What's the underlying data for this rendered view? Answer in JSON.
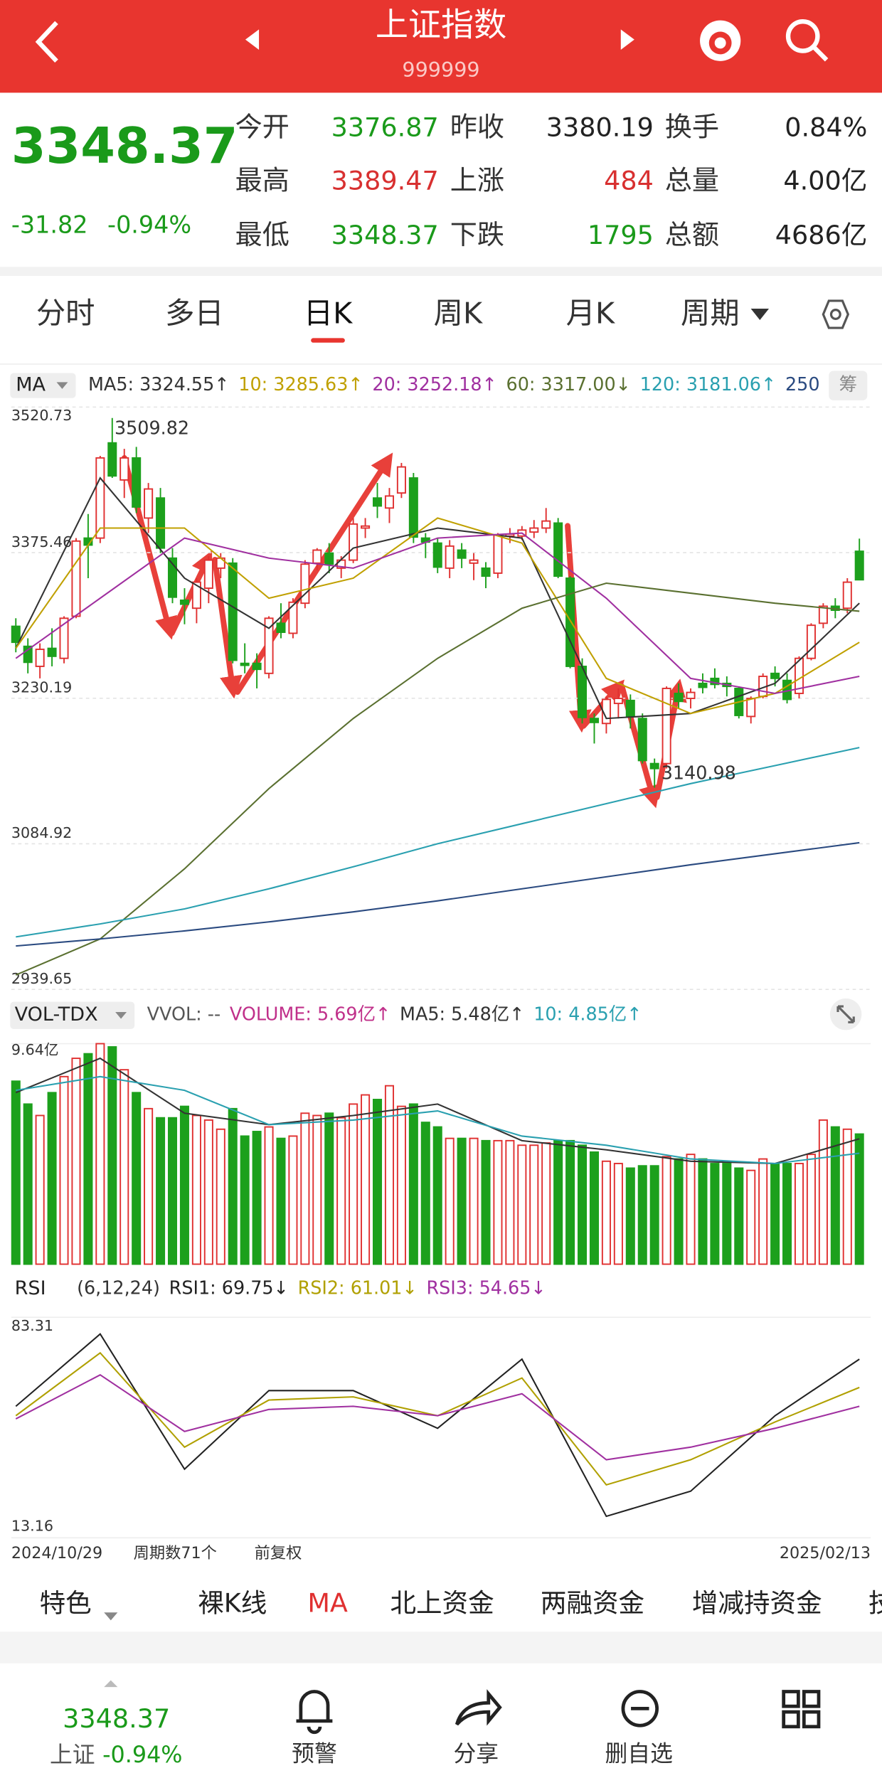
{
  "header": {
    "title": "上证指数",
    "code": "999999"
  },
  "quote": {
    "price": "3348.37",
    "change": "-31.82",
    "pct": "-0.94%",
    "fields": [
      {
        "label": "今开",
        "value": "3376.87",
        "color": "#1a9a1a"
      },
      {
        "label": "昨收",
        "value": "3380.19",
        "color": "#222"
      },
      {
        "label": "换手",
        "value": "0.84%",
        "color": "#222"
      },
      {
        "label": "最高",
        "value": "3389.47",
        "color": "#d83030"
      },
      {
        "label": "上涨",
        "value": "484",
        "color": "#d83030"
      },
      {
        "label": "总量",
        "value": "4.00亿",
        "color": "#222"
      },
      {
        "label": "最低",
        "value": "3348.37",
        "color": "#1a9a1a"
      },
      {
        "label": "下跌",
        "value": "1795",
        "color": "#1a9a1a"
      },
      {
        "label": "总额",
        "value": "4686亿",
        "color": "#222"
      }
    ]
  },
  "tabs": {
    "items": [
      "分时",
      "多日",
      "日K",
      "周K",
      "月K",
      "周期"
    ],
    "active": 2
  },
  "kline": {
    "indicator": "MA",
    "side_button": "筹",
    "ylim": [
      2939.65,
      3520.73
    ],
    "yticks": [
      3520.73,
      3375.46,
      3230.19,
      3084.92,
      2939.65
    ],
    "high_label": "3509.82",
    "high_index": 8,
    "low_label": "3140.98",
    "low_index": 53,
    "candles": [
      [
        3302,
        3310,
        3276,
        3286
      ],
      [
        3282,
        3290,
        3255,
        3266
      ],
      [
        3262,
        3285,
        3250,
        3279
      ],
      [
        3280,
        3300,
        3262,
        3272
      ],
      [
        3270,
        3312,
        3265,
        3310
      ],
      [
        3312,
        3390,
        3310,
        3387
      ],
      [
        3390,
        3414,
        3350,
        3383
      ],
      [
        3390,
        3472,
        3385,
        3470
      ],
      [
        3485,
        3509.82,
        3450,
        3452
      ],
      [
        3448,
        3479,
        3430,
        3470
      ],
      [
        3470,
        3481,
        3415,
        3421
      ],
      [
        3410,
        3445,
        3395,
        3439
      ],
      [
        3430,
        3440,
        3375,
        3380
      ],
      [
        3370,
        3380,
        3325,
        3331
      ],
      [
        3328,
        3340,
        3304,
        3324
      ],
      [
        3320,
        3350,
        3305,
        3346
      ],
      [
        3340,
        3372,
        3325,
        3368
      ],
      [
        3360,
        3375,
        3350,
        3370
      ],
      [
        3365,
        3370,
        3265,
        3268
      ],
      [
        3265,
        3285,
        3255,
        3263
      ],
      [
        3265,
        3275,
        3240,
        3259
      ],
      [
        3255,
        3312,
        3250,
        3310
      ],
      [
        3305,
        3325,
        3290,
        3296
      ],
      [
        3295,
        3330,
        3290,
        3326
      ],
      [
        3325,
        3368,
        3320,
        3364
      ],
      [
        3365,
        3380,
        3358,
        3378
      ],
      [
        3375,
        3385,
        3355,
        3364
      ],
      [
        3360,
        3372,
        3350,
        3368
      ],
      [
        3368,
        3410,
        3365,
        3404
      ],
      [
        3400,
        3410,
        3390,
        3402
      ],
      [
        3430,
        3445,
        3410,
        3422
      ],
      [
        3420,
        3440,
        3405,
        3432
      ],
      [
        3435,
        3465,
        3430,
        3461
      ],
      [
        3450,
        3455,
        3385,
        3391
      ],
      [
        3390,
        3395,
        3370,
        3386
      ],
      [
        3385,
        3390,
        3355,
        3361
      ],
      [
        3360,
        3388,
        3350,
        3382
      ],
      [
        3378,
        3385,
        3360,
        3370
      ],
      [
        3365,
        3375,
        3348,
        3368
      ],
      [
        3360,
        3366,
        3340,
        3352
      ],
      [
        3355,
        3395,
        3350,
        3393
      ],
      [
        3392,
        3400,
        3385,
        3394
      ],
      [
        3392,
        3402,
        3388,
        3398
      ],
      [
        3396,
        3408,
        3390,
        3400
      ],
      [
        3400,
        3420,
        3395,
        3407
      ],
      [
        3405,
        3410,
        3350,
        3352
      ],
      [
        3350,
        3352,
        3260,
        3262
      ],
      [
        3262,
        3270,
        3205,
        3211
      ],
      [
        3210,
        3215,
        3185,
        3206
      ],
      [
        3205,
        3232,
        3195,
        3229
      ],
      [
        3225,
        3240,
        3210,
        3230
      ],
      [
        3228,
        3234,
        3200,
        3212
      ],
      [
        3210,
        3215,
        3165,
        3168
      ],
      [
        3165,
        3170,
        3140.98,
        3160
      ],
      [
        3165,
        3242,
        3160,
        3240
      ],
      [
        3235,
        3245,
        3220,
        3227
      ],
      [
        3230,
        3240,
        3220,
        3236
      ],
      [
        3245,
        3255,
        3235,
        3241
      ],
      [
        3250,
        3260,
        3240,
        3244
      ],
      [
        3245,
        3252,
        3232,
        3242
      ],
      [
        3240,
        3242,
        3210,
        3213
      ],
      [
        3212,
        3232,
        3205,
        3230
      ],
      [
        3232,
        3255,
        3230,
        3252
      ],
      [
        3255,
        3262,
        3242,
        3250
      ],
      [
        3248,
        3255,
        3225,
        3229
      ],
      [
        3235,
        3272,
        3230,
        3270
      ],
      [
        3270,
        3305,
        3268,
        3303
      ],
      [
        3305,
        3325,
        3300,
        3322
      ],
      [
        3322,
        3330,
        3310,
        3318
      ],
      [
        3320,
        3350,
        3315,
        3346
      ],
      [
        3376.87,
        3389.47,
        3348.37,
        3348.37
      ]
    ],
    "ma_x": [
      0,
      7,
      14,
      21,
      28,
      35,
      42,
      49,
      56,
      63,
      70
    ],
    "series": [
      {
        "name": "MA5: 3324.55↑",
        "color": "#333333",
        "values": [
          3280,
          3450,
          3350,
          3300,
          3380,
          3400,
          3390,
          3210,
          3215,
          3245,
          3325
        ]
      },
      {
        "name": "10: 3285.63↑",
        "color": "#c0a000",
        "values": [
          3280,
          3400,
          3400,
          3330,
          3350,
          3410,
          3385,
          3250,
          3215,
          3235,
          3286
        ]
      },
      {
        "name": "20: 3252.18↑",
        "color": "#a030a0",
        "values": [
          3270,
          3330,
          3390,
          3370,
          3360,
          3390,
          3395,
          3330,
          3250,
          3235,
          3252
        ]
      },
      {
        "name": "60: 3317.00↓",
        "color": "#5a7030",
        "values": [
          2954,
          2990,
          3060,
          3140,
          3210,
          3270,
          3320,
          3345,
          3335,
          3325,
          3317
        ]
      },
      {
        "name": "120: 3181.06↑",
        "color": "#2aa0b0",
        "values": [
          2992,
          3005,
          3020,
          3040,
          3062,
          3085,
          3105,
          3125,
          3145,
          3163,
          3181
        ]
      },
      {
        "name": "250",
        "color": "#2a4a80",
        "values": [
          2983,
          2990,
          2998,
          3007,
          3017,
          3028,
          3040,
          3052,
          3064,
          3075,
          3086
        ]
      }
    ]
  },
  "volume": {
    "indicator": "VOL-TDX",
    "note": "VVOL: --",
    "ylim": [
      0,
      9.64
    ],
    "yticks": [
      {
        "value": 9.64,
        "label": "9.64亿"
      }
    ],
    "values": [
      8.0,
      7.0,
      6.5,
      7.5,
      8.2,
      9.0,
      9.2,
      9.64,
      9.5,
      8.5,
      7.5,
      6.8,
      6.4,
      6.4,
      6.9,
      6.5,
      6.3,
      5.9,
      6.8,
      5.6,
      5.8,
      6.0,
      5.5,
      5.6,
      6.6,
      6.5,
      6.6,
      6.4,
      7.0,
      7.4,
      7.2,
      7.8,
      6.9,
      7.0,
      6.2,
      6.0,
      5.5,
      5.5,
      5.5,
      5.4,
      5.4,
      5.4,
      5.2,
      5.2,
      5.3,
      5.4,
      5.4,
      5.2,
      4.9,
      4.5,
      4.4,
      4.2,
      4.3,
      4.3,
      4.7,
      4.6,
      4.8,
      4.6,
      4.4,
      4.4,
      4.2,
      4.1,
      4.6,
      4.4,
      4.4,
      4.4,
      4.8,
      6.3,
      6.0,
      5.9,
      5.69
    ],
    "legend": {
      "name": "VOLUME: 5.69亿↑",
      "color": "#c0308a"
    },
    "ma_x": [
      0,
      7,
      14,
      21,
      28,
      35,
      42,
      49,
      56,
      63,
      70
    ],
    "series": [
      {
        "name": "MA5: 5.48亿↑",
        "color": "#333333",
        "values": [
          7.5,
          9.0,
          6.6,
          6.1,
          6.5,
          7.0,
          5.4,
          5.0,
          4.5,
          4.4,
          5.48
        ]
      },
      {
        "name": "10: 4.85亿↑",
        "color": "#2aa0b0",
        "values": [
          7.6,
          8.2,
          7.6,
          6.1,
          6.3,
          6.7,
          5.6,
          5.2,
          4.6,
          4.4,
          4.85
        ]
      }
    ]
  },
  "rsi": {
    "indicator": "RSI",
    "params": "(6,12,24)",
    "ylim": [
      13.16,
      83.31
    ],
    "yticks": [
      83.31,
      13.16
    ],
    "x": [
      0,
      7,
      14,
      21,
      28,
      35,
      42,
      49,
      56,
      63,
      70
    ],
    "series": [
      {
        "name": "RSI1: 69.75↓",
        "color": "#222222",
        "values": [
          55,
          78,
          35,
          60,
          60,
          48,
          70,
          20,
          28,
          52,
          70
        ]
      },
      {
        "name": "RSI2: 61.01↓",
        "color": "#b0a000",
        "values": [
          52,
          72,
          42,
          57,
          58,
          52,
          64,
          30,
          38,
          50,
          61
        ]
      },
      {
        "name": "RSI3: 54.65↓",
        "color": "#a030a0",
        "values": [
          51,
          65,
          47,
          54,
          55,
          52,
          59,
          38,
          42,
          48,
          55
        ]
      }
    ]
  },
  "footer": {
    "start": "2024/10/29",
    "periods": "周期数71个",
    "adjust": "前复权",
    "end": "2025/02/13"
  },
  "tools": {
    "items": [
      "特色",
      "裸K线",
      "MA",
      "北上资金",
      "两融资金",
      "增减持资金",
      "技"
    ],
    "active": 2
  },
  "bottom": {
    "price": "3348.37",
    "name": "上证",
    "pct": "-0.94%",
    "items": [
      "预警",
      "分享",
      "删自选"
    ]
  }
}
